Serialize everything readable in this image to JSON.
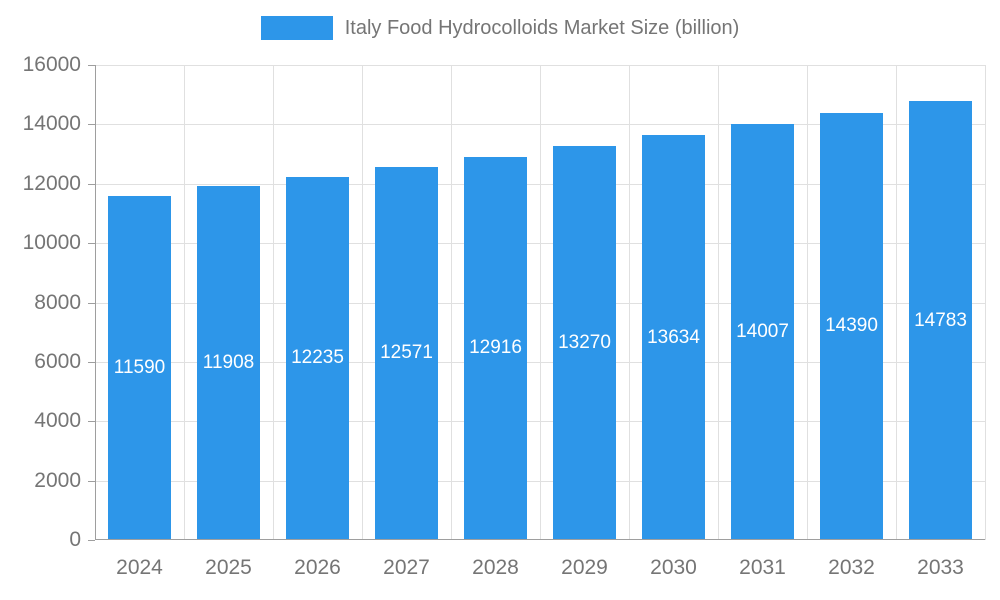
{
  "chart_data": {
    "type": "bar",
    "title": "Italy Food Hydrocolloids Market Size (billion)",
    "categories": [
      "2024",
      "2025",
      "2026",
      "2027",
      "2028",
      "2029",
      "2030",
      "2031",
      "2032",
      "2033"
    ],
    "values": [
      11590,
      11908,
      12235,
      12571,
      12916,
      13270,
      13634,
      14007,
      14390,
      14783
    ],
    "xlabel": "",
    "ylabel": "",
    "ylim": [
      0,
      16000
    ],
    "ytick_step": 2000,
    "grid": "on",
    "legend_position": "top",
    "bar_color": "#2D96E9",
    "bar_label_color": "#ffffff",
    "axis_text_color": "#757575",
    "grid_color": "#e0e0e0",
    "axis_line_color": "#9e9e9e"
  },
  "legend": {
    "label": "Italy Food Hydrocolloids Market Size (billion)"
  }
}
